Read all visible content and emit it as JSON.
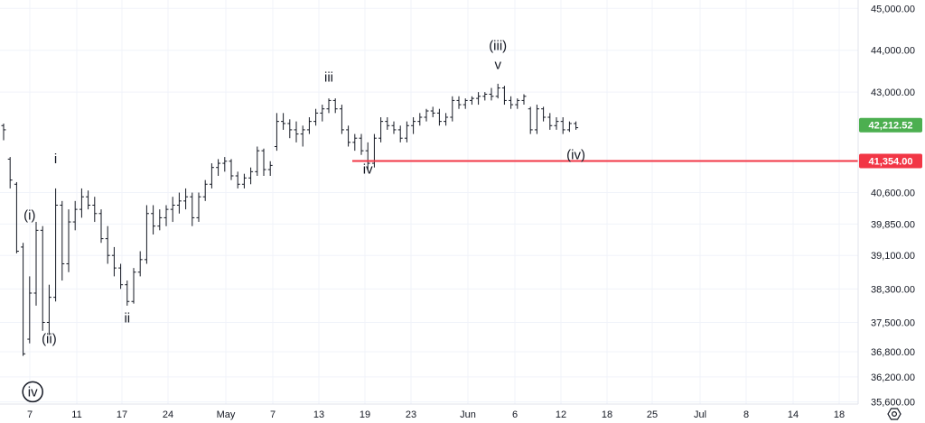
{
  "chart_data": {
    "type": "bar",
    "title": "",
    "xlabel": "",
    "ylabel": "",
    "ylim": [
      35550,
      45200
    ],
    "y_axis_ticks": [
      "45,000.00",
      "44,000.00",
      "43,000.00",
      "40,600.00",
      "39,850.00",
      "39,100.00",
      "38,300.00",
      "37,500.00",
      "36,800.00",
      "36,200.00",
      "35,600.00"
    ],
    "y_axis_tick_values": [
      45000,
      44000,
      43000,
      40600,
      39850,
      39100,
      38300,
      37500,
      36800,
      36200,
      35600
    ],
    "x_axis_ticks": [
      "7",
      "11",
      "17",
      "24",
      "May",
      "7",
      "13",
      "19",
      "23",
      "Jun",
      "6",
      "12",
      "18",
      "25",
      "Jul",
      "8",
      "14",
      "18"
    ],
    "grid": true,
    "colors": {
      "up": "#26a69a",
      "down": "#ef5350",
      "bar_dark": "#131722",
      "level_line": "#f23645",
      "last_price": "#4caf50"
    },
    "last_price": {
      "value": 42212.52,
      "label": "42,212.52"
    },
    "horizontal_level": {
      "value": 41354,
      "label": "41,354.00"
    },
    "wave_labels": [
      {
        "text": "i",
        "date_index": 8,
        "price": 41300
      },
      {
        "text": "(i)",
        "date_index": 4,
        "price": 39950
      },
      {
        "text": "(ii)",
        "date_index": 7,
        "price": 37000
      },
      {
        "text": "iv",
        "date_index": 1,
        "price": 35950,
        "circled": true
      },
      {
        "text": "ii",
        "date_index": 19,
        "price": 37500
      },
      {
        "text": "iii",
        "date_index": 50,
        "price": 43250
      },
      {
        "text": "iv",
        "date_index": 56,
        "price": 41050
      },
      {
        "text": "(iii)",
        "date_index": 76,
        "price": 44000
      },
      {
        "text": "v",
        "date_index": 76,
        "price": 43550
      },
      {
        "text": "(iv)",
        "date_index": 88,
        "price": 41400
      }
    ],
    "bars": [
      [
        42200,
        42250,
        41850,
        42100
      ],
      [
        41400,
        41450,
        40700,
        40900
      ],
      [
        40800,
        40850,
        39150,
        39200
      ],
      [
        39300,
        39400,
        36700,
        36750
      ],
      [
        37100,
        38600,
        37000,
        38200
      ],
      [
        38200,
        39900,
        37900,
        39700
      ],
      [
        39700,
        39800,
        37300,
        37500
      ],
      [
        37500,
        38400,
        37200,
        38100
      ],
      [
        38100,
        40700,
        38000,
        40300
      ],
      [
        40300,
        40400,
        38500,
        38900
      ],
      [
        38900,
        40200,
        38700,
        39900
      ],
      [
        39900,
        40400,
        39700,
        40200
      ],
      [
        40200,
        40700,
        40000,
        40500
      ],
      [
        40500,
        40650,
        40200,
        40300
      ],
      [
        40300,
        40500,
        39900,
        40100
      ],
      [
        40100,
        40200,
        39400,
        39500
      ],
      [
        39500,
        39800,
        38900,
        39100
      ],
      [
        39100,
        39300,
        38600,
        38800
      ],
      [
        38800,
        38900,
        38300,
        38400
      ],
      [
        38400,
        38500,
        37900,
        38000
      ],
      [
        38000,
        38800,
        37950,
        38700
      ],
      [
        38700,
        39200,
        38600,
        39000
      ],
      [
        39000,
        40300,
        38900,
        40100
      ],
      [
        40100,
        40300,
        39600,
        39800
      ],
      [
        39800,
        40200,
        39700,
        40000
      ],
      [
        40000,
        40300,
        39800,
        40200
      ],
      [
        40200,
        40500,
        39900,
        40300
      ],
      [
        40300,
        40600,
        40100,
        40400
      ],
      [
        40400,
        40700,
        40200,
        40500
      ],
      [
        40500,
        40600,
        39800,
        40000
      ],
      [
        40000,
        40600,
        39900,
        40500
      ],
      [
        40500,
        40900,
        40400,
        40800
      ],
      [
        40800,
        41300,
        40700,
        41200
      ],
      [
        41200,
        41400,
        41000,
        41300
      ],
      [
        41300,
        41450,
        41100,
        41350
      ],
      [
        41350,
        41400,
        40900,
        41000
      ],
      [
        41000,
        41100,
        40700,
        40800
      ],
      [
        40800,
        41050,
        40700,
        40950
      ],
      [
        40950,
        41200,
        40800,
        41100
      ],
      [
        41100,
        41700,
        41000,
        41600
      ],
      [
        41600,
        41650,
        41000,
        41150
      ],
      [
        41150,
        41350,
        41000,
        41250
      ],
      [
        41700,
        42500,
        41600,
        42300
      ],
      [
        42300,
        42500,
        42100,
        42250
      ],
      [
        42250,
        42350,
        41900,
        42100
      ],
      [
        42100,
        42300,
        41800,
        42000
      ],
      [
        42000,
        42200,
        41700,
        42100
      ],
      [
        42100,
        42400,
        42000,
        42300
      ],
      [
        42300,
        42600,
        42200,
        42500
      ],
      [
        42500,
        42700,
        42300,
        42600
      ],
      [
        42600,
        42850,
        42500,
        42800
      ],
      [
        42800,
        42850,
        42500,
        42600
      ],
      [
        42600,
        42700,
        42000,
        42100
      ],
      [
        42100,
        42200,
        41700,
        41800
      ],
      [
        41800,
        42000,
        41600,
        41900
      ],
      [
        41900,
        42000,
        41500,
        41600
      ],
      [
        41600,
        41800,
        41150,
        41300
      ],
      [
        41300,
        42000,
        41200,
        41900
      ],
      [
        41900,
        42400,
        41800,
        42300
      ],
      [
        42300,
        42400,
        42100,
        42200
      ],
      [
        42200,
        42300,
        42000,
        42100
      ],
      [
        42100,
        42200,
        41800,
        41900
      ],
      [
        41900,
        42300,
        41800,
        42200
      ],
      [
        42200,
        42400,
        42000,
        42300
      ],
      [
        42300,
        42500,
        42200,
        42400
      ],
      [
        42400,
        42600,
        42300,
        42550
      ],
      [
        42550,
        42650,
        42400,
        42500
      ],
      [
        42500,
        42600,
        42200,
        42300
      ],
      [
        42300,
        42500,
        42200,
        42400
      ],
      [
        42400,
        42900,
        42300,
        42800
      ],
      [
        42800,
        42900,
        42600,
        42700
      ],
      [
        42700,
        42850,
        42600,
        42800
      ],
      [
        42800,
        42900,
        42700,
        42850
      ],
      [
        42850,
        43000,
        42700,
        42900
      ],
      [
        42900,
        43000,
        42800,
        42950
      ],
      [
        42950,
        43100,
        42800,
        42900
      ],
      [
        42900,
        43200,
        42850,
        43100
      ],
      [
        43100,
        43150,
        42700,
        42800
      ],
      [
        42800,
        42900,
        42600,
        42700
      ],
      [
        42700,
        42850,
        42600,
        42800
      ],
      [
        42800,
        42950,
        42700,
        42900
      ],
      [
        42600,
        42650,
        42000,
        42100
      ],
      [
        42100,
        42700,
        42000,
        42600
      ],
      [
        42600,
        42650,
        42300,
        42400
      ],
      [
        42400,
        42500,
        42100,
        42200
      ],
      [
        42200,
        42400,
        42100,
        42300
      ],
      [
        42300,
        42400,
        42000,
        42100
      ],
      [
        42100,
        42300,
        42050,
        42250
      ],
      [
        42250,
        42300,
        42100,
        42150
      ]
    ]
  }
}
